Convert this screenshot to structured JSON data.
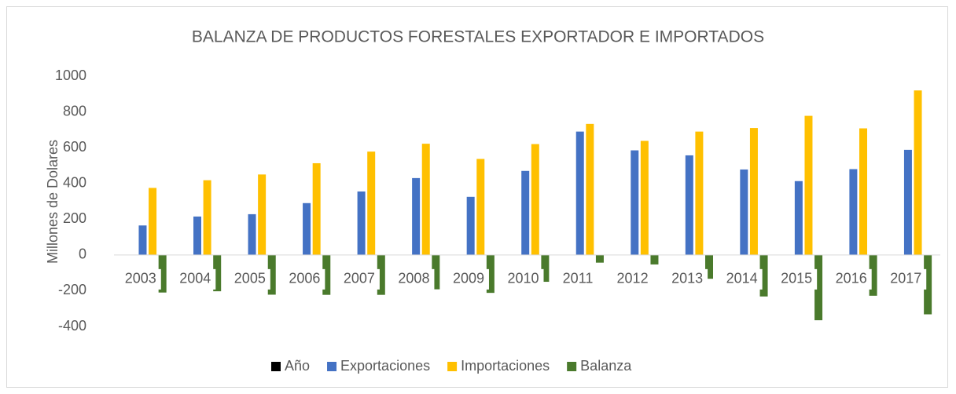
{
  "chart_data": {
    "type": "bar",
    "title": "BALANZA DE PRODUCTOS FORESTALES EXPORTADOR E IMPORTADOS",
    "y_label": "Millones de Dolares",
    "categories": [
      "2003",
      "2004",
      "2005",
      "2006",
      "2007",
      "2008",
      "2009",
      "2010",
      "2011",
      "2012",
      "2013",
      "2014",
      "2015",
      "2016",
      "2017"
    ],
    "series": [
      {
        "name": "Año",
        "color": "#000000",
        "values": [
          null,
          null,
          null,
          null,
          null,
          null,
          null,
          null,
          null,
          null,
          null,
          null,
          null,
          null,
          null
        ]
      },
      {
        "name": "Exportaciones",
        "color": "#4472c4",
        "values": [
          165,
          215,
          228,
          290,
          355,
          430,
          325,
          470,
          690,
          585,
          557,
          478,
          413,
          480,
          588
        ]
      },
      {
        "name": "Importaciones",
        "color": "#ffc000",
        "values": [
          375,
          418,
          450,
          513,
          578,
          622,
          537,
          620,
          733,
          638,
          690,
          710,
          778,
          708,
          920
        ]
      },
      {
        "name": "Balanza",
        "color": "#4a7a2c",
        "values": [
          -210,
          -203,
          -222,
          -223,
          -223,
          -192,
          -212,
          -150,
          -43,
          -53,
          -133,
          -232,
          -365,
          -228,
          -332
        ]
      }
    ],
    "ylim": [
      -400,
      1000
    ],
    "yticks": [
      -400,
      -200,
      0,
      200,
      400,
      600,
      800,
      1000
    ],
    "grid": false,
    "legend": "bottom"
  }
}
